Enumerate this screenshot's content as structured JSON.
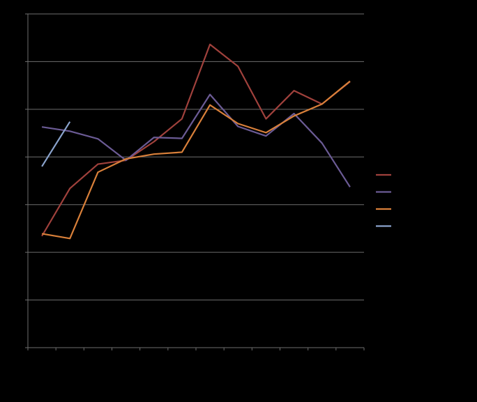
{
  "chart_data": {
    "type": "line",
    "categories": [
      null,
      null,
      null,
      null,
      null,
      null,
      null,
      null,
      null,
      null,
      null,
      null
    ],
    "series": [
      {
        "color": "#a0413c",
        "values": [
          2.34,
          3.34,
          3.85,
          3.93,
          4.32,
          4.8,
          6.36,
          5.9,
          4.8,
          5.39,
          5.11,
          5.58
        ]
      },
      {
        "color": "#6b5b95",
        "values": [
          4.63,
          4.54,
          4.38,
          3.93,
          4.41,
          4.39,
          5.31,
          4.64,
          4.44,
          4.91,
          4.29,
          3.37
        ]
      },
      {
        "color": "#d9803a",
        "values": [
          2.39,
          2.29,
          3.68,
          3.96,
          4.06,
          4.1,
          5.09,
          4.7,
          4.51,
          4.86,
          5.11,
          5.59
        ]
      },
      {
        "color": "#8aa3cc",
        "values": [
          3.8,
          4.74,
          null,
          null,
          null,
          null,
          null,
          null,
          null,
          null,
          null,
          null
        ]
      }
    ],
    "ylim": [
      0,
      7
    ],
    "yticks": [
      0,
      1,
      2,
      3,
      4,
      5,
      6,
      7
    ],
    "grid": true,
    "legend": "right"
  }
}
